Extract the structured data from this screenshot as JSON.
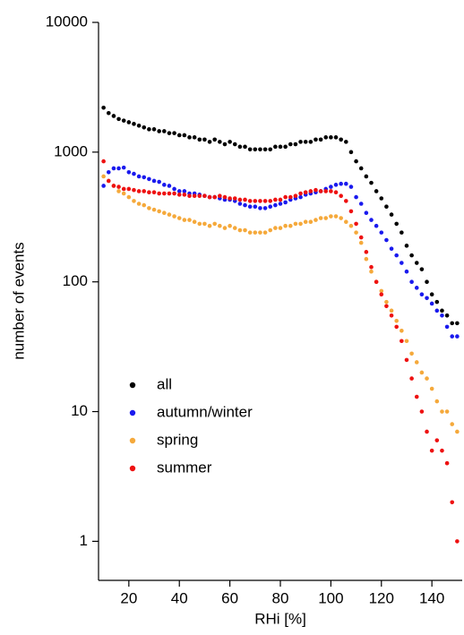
{
  "chart_data": {
    "type": "scatter",
    "x_label": "RHi [%]",
    "y_label": "number of events",
    "log_y": true,
    "legend": "lower left",
    "xlim": [
      8,
      152
    ],
    "xticks": [
      20,
      40,
      60,
      80,
      100,
      120,
      140
    ],
    "ylim": [
      0.5,
      10000
    ],
    "yticks": [
      1,
      10,
      100,
      1000,
      10000
    ],
    "x": [
      10,
      12,
      14,
      16,
      18,
      20,
      22,
      24,
      26,
      28,
      30,
      32,
      34,
      36,
      38,
      40,
      42,
      44,
      46,
      48,
      50,
      52,
      54,
      56,
      58,
      60,
      62,
      64,
      66,
      68,
      70,
      72,
      74,
      76,
      78,
      80,
      82,
      84,
      86,
      88,
      90,
      92,
      94,
      96,
      98,
      100,
      102,
      104,
      106,
      108,
      110,
      112,
      114,
      116,
      118,
      120,
      122,
      124,
      126,
      128,
      130,
      132,
      134,
      136,
      138,
      140,
      142,
      144,
      146,
      148,
      150
    ],
    "series": [
      {
        "name": "all",
        "color": "#000000",
        "values": [
          2200,
          2000,
          1900,
          1800,
          1750,
          1700,
          1650,
          1600,
          1550,
          1500,
          1500,
          1450,
          1450,
          1400,
          1400,
          1350,
          1350,
          1300,
          1300,
          1250,
          1250,
          1200,
          1250,
          1200,
          1150,
          1200,
          1150,
          1100,
          1100,
          1050,
          1050,
          1050,
          1050,
          1050,
          1100,
          1100,
          1100,
          1150,
          1150,
          1200,
          1200,
          1200,
          1250,
          1250,
          1300,
          1300,
          1300,
          1250,
          1200,
          1000,
          850,
          750,
          650,
          580,
          500,
          440,
          380,
          330,
          280,
          240,
          190,
          160,
          140,
          125,
          100,
          80,
          70,
          60,
          55,
          48,
          48
        ]
      },
      {
        "name": "autumn/winter",
        "color": "#1a1aee",
        "values": [
          550,
          700,
          750,
          750,
          760,
          700,
          680,
          650,
          640,
          620,
          600,
          590,
          560,
          550,
          520,
          500,
          500,
          480,
          480,
          470,
          460,
          450,
          450,
          440,
          430,
          430,
          420,
          400,
          390,
          380,
          380,
          370,
          370,
          380,
          390,
          400,
          410,
          430,
          440,
          450,
          470,
          480,
          490,
          500,
          520,
          540,
          560,
          570,
          570,
          540,
          450,
          400,
          340,
          300,
          270,
          240,
          210,
          180,
          160,
          140,
          120,
          100,
          90,
          80,
          75,
          68,
          60,
          55,
          45,
          38,
          38
        ]
      },
      {
        "name": "spring",
        "color": "#f5a93b",
        "values": [
          650,
          600,
          550,
          500,
          480,
          450,
          420,
          400,
          390,
          370,
          360,
          350,
          340,
          330,
          320,
          310,
          300,
          300,
          290,
          280,
          280,
          270,
          280,
          270,
          260,
          270,
          260,
          250,
          250,
          240,
          240,
          240,
          240,
          250,
          260,
          260,
          270,
          270,
          280,
          280,
          290,
          290,
          300,
          310,
          310,
          320,
          320,
          310,
          290,
          270,
          240,
          200,
          150,
          120,
          100,
          85,
          70,
          60,
          50,
          42,
          35,
          28,
          24,
          20,
          18,
          15,
          12,
          10,
          10,
          8,
          7
        ]
      },
      {
        "name": "summer",
        "color": "#ee1111",
        "values": [
          850,
          600,
          550,
          540,
          520,
          520,
          510,
          500,
          500,
          490,
          490,
          480,
          480,
          480,
          480,
          470,
          470,
          460,
          460,
          460,
          460,
          450,
          450,
          460,
          450,
          440,
          440,
          430,
          430,
          420,
          420,
          420,
          420,
          420,
          430,
          430,
          450,
          450,
          460,
          480,
          490,
          500,
          510,
          500,
          500,
          500,
          490,
          460,
          420,
          350,
          280,
          220,
          170,
          130,
          100,
          80,
          65,
          55,
          45,
          35,
          25,
          18,
          13,
          10,
          7,
          5,
          6,
          5,
          4,
          2,
          1
        ]
      }
    ]
  }
}
